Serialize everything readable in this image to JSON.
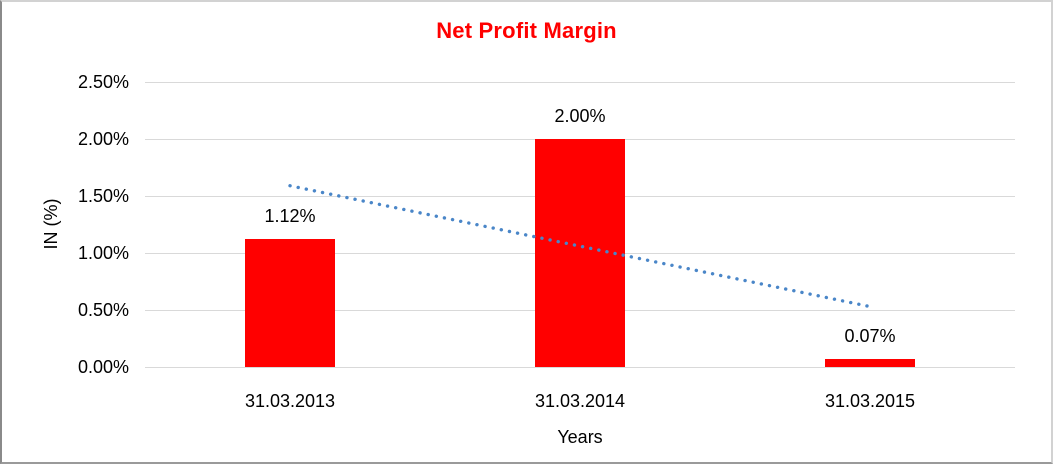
{
  "window": {
    "background": "#ffffff",
    "frame_color": "#bdbdbd"
  },
  "chart_data": {
    "type": "bar",
    "title": "Net Profit Margin",
    "xlabel": "Years",
    "ylabel": "IN (%)",
    "categories": [
      "31.03.2013",
      "31.03.2014",
      "31.03.2015"
    ],
    "values": [
      1.12,
      2.0,
      0.07
    ],
    "data_labels": [
      "1.12%",
      "2.00%",
      "0.07%"
    ],
    "ylim": [
      0,
      2.5
    ],
    "y_ticks": [
      {
        "value": 0.0,
        "label": "0.00%"
      },
      {
        "value": 0.5,
        "label": "0.50%"
      },
      {
        "value": 1.0,
        "label": "1.00%"
      },
      {
        "value": 1.5,
        "label": "1.50%"
      },
      {
        "value": 2.0,
        "label": "2.00%"
      },
      {
        "value": 2.5,
        "label": "2.50%"
      }
    ],
    "grid": true,
    "legend": "none",
    "colors": {
      "bar": "#ff0000",
      "title": "#ff0000",
      "gridline": "#d9d9d9",
      "axis_text": "#000000",
      "trendline": "#4a86c8"
    },
    "trendline": {
      "type": "linear",
      "style": "dotted",
      "start_value": 1.59,
      "end_value": 0.53
    }
  }
}
